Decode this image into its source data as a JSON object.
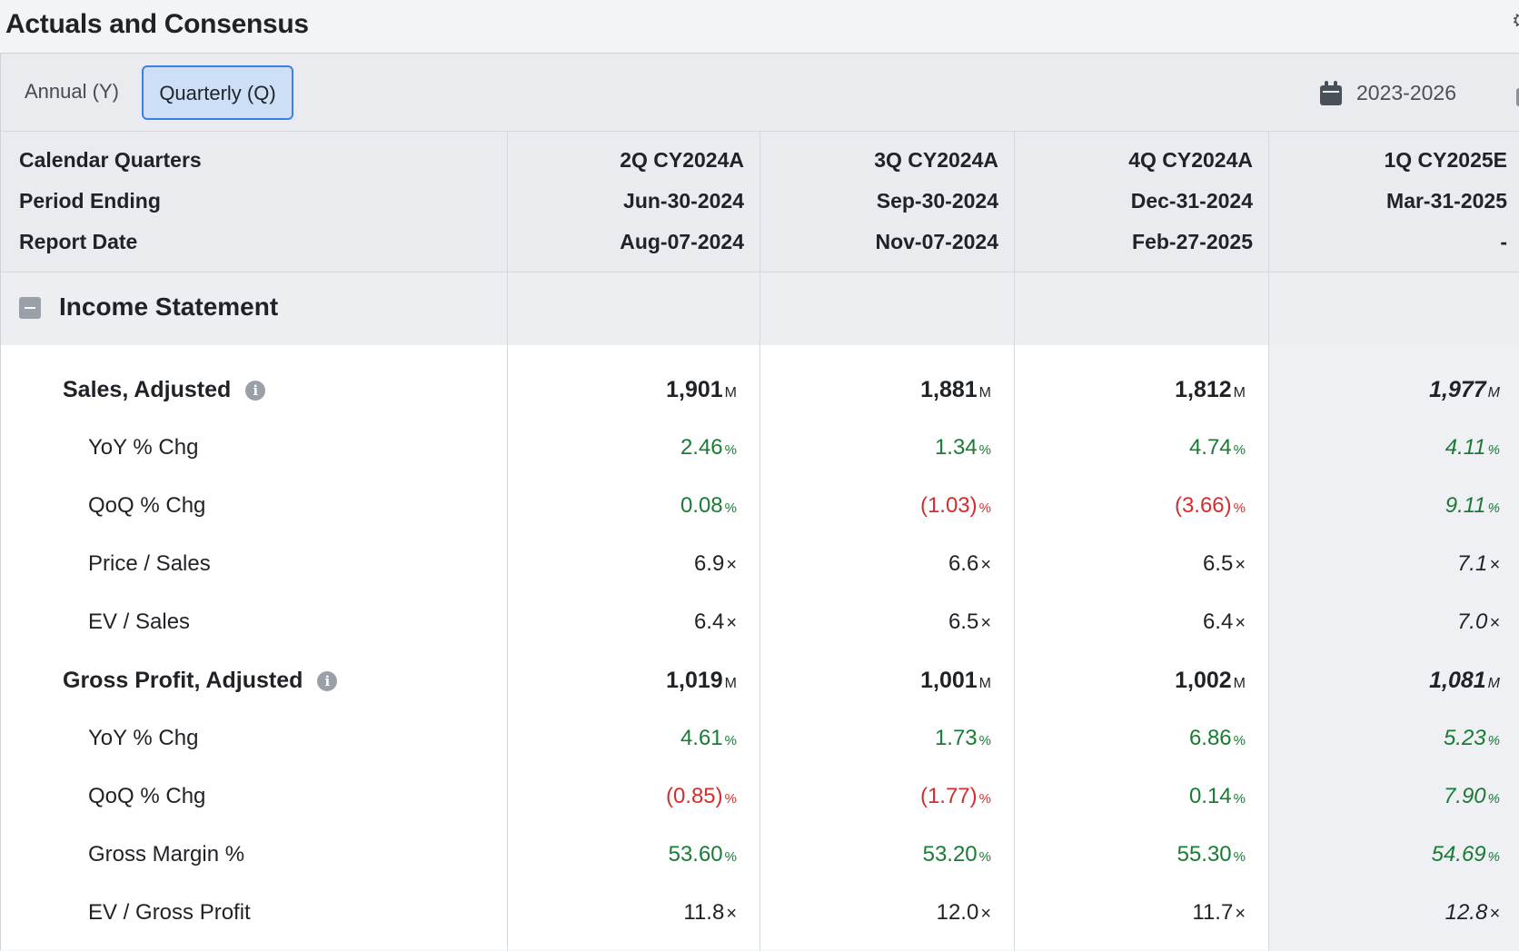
{
  "title": "Actuals and Consensus",
  "tabs": [
    {
      "label": "Annual (Y)",
      "active": false
    },
    {
      "label": "Quarterly (Q)",
      "active": true
    }
  ],
  "date_range": "2023-2026",
  "header": {
    "rows": [
      {
        "label": "Calendar Quarters",
        "values": [
          "2Q CY2024A",
          "3Q CY2024A",
          "4Q CY2024A",
          "1Q CY2025E"
        ]
      },
      {
        "label": "Period Ending",
        "values": [
          "Jun-30-2024",
          "Sep-30-2024",
          "Dec-31-2024",
          "Mar-31-2025"
        ]
      },
      {
        "label": "Report Date",
        "values": [
          "Aug-07-2024",
          "Nov-07-2024",
          "Feb-27-2025",
          "-"
        ]
      }
    ]
  },
  "section": {
    "title": "Income Statement"
  },
  "colors": {
    "positive": "#1b7a35",
    "negative": "#d12f2f",
    "accent": "#3b82dc"
  },
  "rows": [
    {
      "label": "Sales, Adjusted",
      "type": "main",
      "info": true,
      "unit": "M",
      "values": [
        "1,901",
        "1,881",
        "1,812",
        "1,977"
      ],
      "tones": [
        "neutral",
        "neutral",
        "neutral",
        "neutral"
      ]
    },
    {
      "label": "YoY % Chg",
      "type": "sub",
      "unit": "%",
      "values": [
        "2.46",
        "1.34",
        "4.74",
        "4.11"
      ],
      "tones": [
        "pos",
        "pos",
        "pos",
        "pos"
      ]
    },
    {
      "label": "QoQ % Chg",
      "type": "sub",
      "unit": "%",
      "values": [
        "0.08",
        "(1.03)",
        "(3.66)",
        "9.11"
      ],
      "tones": [
        "pos",
        "neg",
        "neg",
        "pos"
      ]
    },
    {
      "label": "Price / Sales",
      "type": "sub",
      "unit": "x",
      "values": [
        "6.9",
        "6.6",
        "6.5",
        "7.1"
      ],
      "tones": [
        "neutral",
        "neutral",
        "neutral",
        "neutral"
      ]
    },
    {
      "label": "EV / Sales",
      "type": "sub",
      "unit": "x",
      "values": [
        "6.4",
        "6.5",
        "6.4",
        "7.0"
      ],
      "tones": [
        "neutral",
        "neutral",
        "neutral",
        "neutral"
      ]
    },
    {
      "label": "Gross Profit, Adjusted",
      "type": "main",
      "info": true,
      "unit": "M",
      "values": [
        "1,019",
        "1,001",
        "1,002",
        "1,081"
      ],
      "tones": [
        "neutral",
        "neutral",
        "neutral",
        "neutral"
      ]
    },
    {
      "label": "YoY % Chg",
      "type": "sub",
      "unit": "%",
      "values": [
        "4.61",
        "1.73",
        "6.86",
        "5.23"
      ],
      "tones": [
        "pos",
        "pos",
        "pos",
        "pos"
      ]
    },
    {
      "label": "QoQ % Chg",
      "type": "sub",
      "unit": "%",
      "values": [
        "(0.85)",
        "(1.77)",
        "0.14",
        "7.90"
      ],
      "tones": [
        "neg",
        "neg",
        "pos",
        "pos"
      ]
    },
    {
      "label": "Gross Margin %",
      "type": "sub",
      "unit": "%",
      "values": [
        "53.60",
        "53.20",
        "55.30",
        "54.69"
      ],
      "tones": [
        "pos",
        "pos",
        "pos",
        "pos"
      ]
    },
    {
      "label": "EV / Gross Profit",
      "type": "sub",
      "unit": "x",
      "values": [
        "11.8",
        "12.0",
        "11.7",
        "12.8"
      ],
      "tones": [
        "neutral",
        "neutral",
        "neutral",
        "neutral"
      ]
    }
  ]
}
